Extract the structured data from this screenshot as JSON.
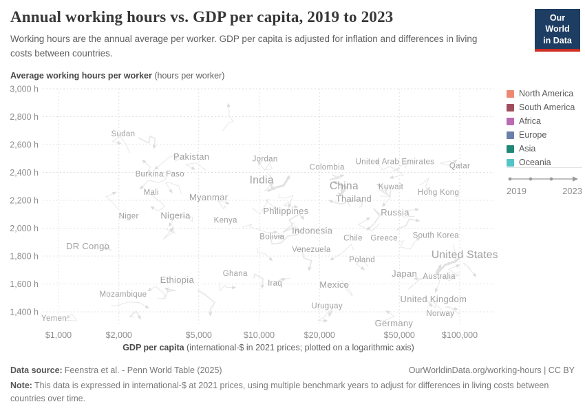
{
  "header": {
    "title": "Annual working hours vs. GDP per capita, 2019 to 2023",
    "subtitle": "Working hours are the annual average per worker. GDP per capita is adjusted for inflation and differences in living costs between countries.",
    "logo": {
      "line1": "Our World",
      "line2": "in Data",
      "bg_color": "#1d3d63",
      "bar_color": "#cf2d24"
    }
  },
  "chart_data": {
    "type": "scatter",
    "title": "Annual working hours vs. GDP per capita, 2019 to 2023",
    "grid": true,
    "legend_position": "right",
    "x_axis": {
      "scale": "log",
      "label_bold": "GDP per capita",
      "label_rest": "(international-$ in 2021 prices; plotted on a logarithmic axis)",
      "range": [
        830,
        150000
      ],
      "ticks": [
        {
          "value": 1000,
          "label": "$1,000"
        },
        {
          "value": 2000,
          "label": "$2,000"
        },
        {
          "value": 5000,
          "label": "$5,000"
        },
        {
          "value": 10000,
          "label": "$10,000"
        },
        {
          "value": 20000,
          "label": "$20,000"
        },
        {
          "value": 50000,
          "label": "$50,000"
        },
        {
          "value": 100000,
          "label": "$100,000"
        }
      ]
    },
    "y_axis": {
      "scale": "linear",
      "label_bold": "Average working hours per worker",
      "label_rest": "(hours per worker)",
      "range": [
        1330,
        3035
      ],
      "ticks": [
        {
          "value": 3000,
          "label": "3,000 h"
        },
        {
          "value": 2800,
          "label": "2,800 h"
        },
        {
          "value": 2600,
          "label": "2,600 h"
        },
        {
          "value": 2400,
          "label": "2,400 h"
        },
        {
          "value": 2200,
          "label": "2,200 h"
        },
        {
          "value": 2000,
          "label": "2,000 h"
        },
        {
          "value": 1800,
          "label": "1,800 h"
        },
        {
          "value": 1600,
          "label": "1,600 h"
        },
        {
          "value": 1400,
          "label": "1,400 h"
        }
      ]
    },
    "points": [
      {
        "name": "Sudan",
        "gdp": 2100,
        "hours": 2680,
        "size": "m"
      },
      {
        "name": "Pakistan",
        "gdp": 4600,
        "hours": 2510,
        "size": "ml"
      },
      {
        "name": "Jordan",
        "gdp": 10700,
        "hours": 2500,
        "size": "m"
      },
      {
        "name": "United Arab Emirates",
        "gdp": 47600,
        "hours": 2480,
        "size": "m"
      },
      {
        "name": "Qatar",
        "gdp": 100000,
        "hours": 2450,
        "size": "m"
      },
      {
        "name": "Colombia",
        "gdp": 21800,
        "hours": 2440,
        "size": "m"
      },
      {
        "name": "Burkina Faso",
        "gdp": 3200,
        "hours": 2390,
        "size": "m"
      },
      {
        "name": "India",
        "gdp": 10300,
        "hours": 2340,
        "size": "l"
      },
      {
        "name": "China",
        "gdp": 26500,
        "hours": 2300,
        "size": "l"
      },
      {
        "name": "Kuwait",
        "gdp": 45400,
        "hours": 2300,
        "size": "m"
      },
      {
        "name": "Mali",
        "gdp": 2900,
        "hours": 2260,
        "size": "m"
      },
      {
        "name": "Hong Kong",
        "gdp": 78300,
        "hours": 2260,
        "size": "m"
      },
      {
        "name": "Myanmar",
        "gdp": 5600,
        "hours": 2220,
        "size": "ml"
      },
      {
        "name": "Thailand",
        "gdp": 29600,
        "hours": 2210,
        "size": "ml"
      },
      {
        "name": "Philippines",
        "gdp": 13600,
        "hours": 2120,
        "size": "ml"
      },
      {
        "name": "Russia",
        "gdp": 47600,
        "hours": 2110,
        "size": "ml"
      },
      {
        "name": "Niger",
        "gdp": 2240,
        "hours": 2090,
        "size": "m"
      },
      {
        "name": "Nigeria",
        "gdp": 3830,
        "hours": 2090,
        "size": "ml"
      },
      {
        "name": "Kenya",
        "gdp": 6800,
        "hours": 2060,
        "size": "m"
      },
      {
        "name": "Indonesia",
        "gdp": 18400,
        "hours": 1980,
        "size": "ml"
      },
      {
        "name": "South Korea",
        "gdp": 76000,
        "hours": 1950,
        "size": "m"
      },
      {
        "name": "Bolivia",
        "gdp": 11600,
        "hours": 1940,
        "size": "m"
      },
      {
        "name": "Chile",
        "gdp": 29400,
        "hours": 1930,
        "size": "m"
      },
      {
        "name": "Greece",
        "gdp": 42000,
        "hours": 1930,
        "size": "m"
      },
      {
        "name": "DR Congo",
        "gdp": 1400,
        "hours": 1870,
        "size": "ml"
      },
      {
        "name": "Venezuela",
        "gdp": 18200,
        "hours": 1850,
        "size": "m"
      },
      {
        "name": "United States",
        "gdp": 106000,
        "hours": 1805,
        "size": "l"
      },
      {
        "name": "Poland",
        "gdp": 32600,
        "hours": 1775,
        "size": "m"
      },
      {
        "name": "Ghana",
        "gdp": 7600,
        "hours": 1677,
        "size": "m"
      },
      {
        "name": "Japan",
        "gdp": 53000,
        "hours": 1672,
        "size": "ml"
      },
      {
        "name": "Australia",
        "gdp": 79000,
        "hours": 1657,
        "size": "m"
      },
      {
        "name": "Ethiopia",
        "gdp": 3900,
        "hours": 1627,
        "size": "ml"
      },
      {
        "name": "Iraq",
        "gdp": 12000,
        "hours": 1607,
        "size": "m"
      },
      {
        "name": "Mexico",
        "gdp": 23700,
        "hours": 1593,
        "size": "ml"
      },
      {
        "name": "Mozambique",
        "gdp": 2100,
        "hours": 1528,
        "size": "m"
      },
      {
        "name": "United Kingdom",
        "gdp": 74000,
        "hours": 1489,
        "size": "ml"
      },
      {
        "name": "Uruguay",
        "gdp": 21800,
        "hours": 1444,
        "size": "m"
      },
      {
        "name": "Norway",
        "gdp": 80000,
        "hours": 1390,
        "size": "m"
      },
      {
        "name": "Yemen",
        "gdp": 950,
        "hours": 1355,
        "size": "m"
      },
      {
        "name": "Germany",
        "gdp": 47000,
        "hours": 1316,
        "size": "ml"
      }
    ]
  },
  "legend": {
    "items": [
      {
        "label": "North America",
        "color": "#ED8871"
      },
      {
        "label": "South America",
        "color": "#A04E5B"
      },
      {
        "label": "Africa",
        "color": "#B96BB4"
      },
      {
        "label": "Europe",
        "color": "#6A80A8"
      },
      {
        "label": "Asia",
        "color": "#1F8775"
      },
      {
        "label": "Oceania",
        "color": "#55C4C7"
      }
    ]
  },
  "timeline": {
    "start": "2019",
    "end": "2023"
  },
  "footer": {
    "source_label": "Data source:",
    "source": "Feenstra et al. - Penn World Table (2025)",
    "link": "OurWorldinData.org/working-hours | CC BY",
    "note_label": "Note:",
    "note": "This data is expressed in international-$ at 2021 prices, using multiple benchmark years to adjust for differences in living costs between countries over time."
  }
}
